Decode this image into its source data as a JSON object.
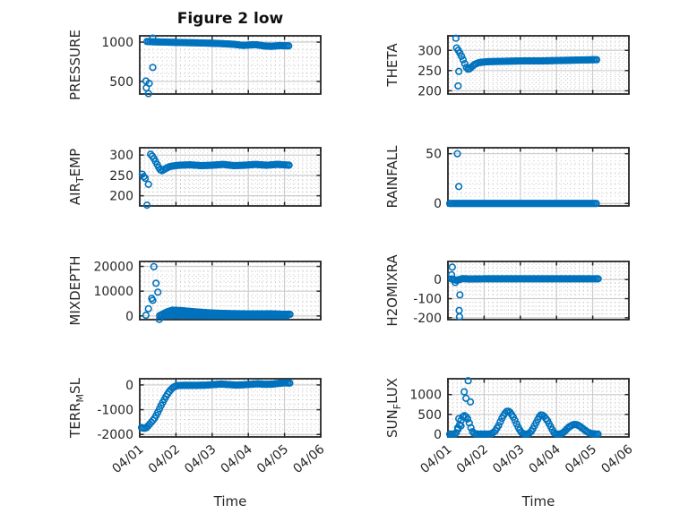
{
  "figure": {
    "title": "Figure 2 low",
    "xlabel": "Time",
    "background": "#ffffff",
    "marker_color": "#0072BD",
    "axis_color": "#262626",
    "grid_major_color": "#cccccc",
    "grid_minor_color": "#c3c3c3",
    "text_color": "#262626"
  },
  "chart_data": {
    "type": "scatter",
    "marker": "o",
    "title": "Figure 2 low",
    "xlabel": "Time",
    "xlim": [
      0,
      5
    ],
    "x_tick_labels": [
      "04/01",
      "04/02",
      "04/03",
      "04/04",
      "04/05",
      "04/06"
    ],
    "x_minor_per_day": 8,
    "legend": "none",
    "grid": "major+minor",
    "plots": [
      {
        "id": "pressure",
        "row": 0,
        "col": 0,
        "ylabel_segments": [
          {
            "text": "PRESSURE",
            "sub": false
          }
        ],
        "yticks": [
          500,
          1000
        ],
        "ylim": [
          340,
          1080
        ],
        "y_minor_step": 100,
        "series": [
          [
            0.2,
            1008
          ],
          [
            0.4,
            1003
          ],
          [
            0.7,
            1000
          ],
          [
            1,
            996
          ],
          [
            1.4,
            992
          ],
          [
            1.8,
            988
          ],
          [
            2.2,
            982
          ],
          [
            2.6,
            972
          ],
          [
            2.85,
            958
          ],
          [
            3,
            962
          ],
          [
            3.2,
            968
          ],
          [
            3.45,
            950
          ],
          [
            3.65,
            946
          ],
          [
            3.85,
            955
          ],
          [
            4.15,
            952
          ]
        ],
        "outliers": [
          [
            0.36,
            1050
          ],
          [
            0.36,
            678
          ],
          [
            0.17,
            505
          ],
          [
            0.26,
            475
          ],
          [
            0.18,
            418
          ],
          [
            0.24,
            345
          ]
        ]
      },
      {
        "id": "theta",
        "row": 0,
        "col": 1,
        "ylabel_segments": [
          {
            "text": "THETA",
            "sub": false
          }
        ],
        "yticks": [
          200,
          250,
          300
        ],
        "ylim": [
          192,
          336
        ],
        "y_minor_step": 10,
        "series": [
          [
            0.24,
            306
          ],
          [
            0.3,
            298
          ],
          [
            0.35,
            290
          ],
          [
            0.4,
            281
          ],
          [
            0.45,
            270
          ],
          [
            0.51,
            258
          ],
          [
            0.57,
            252
          ],
          [
            0.63,
            257
          ],
          [
            0.73,
            265
          ],
          [
            0.87,
            270
          ],
          [
            1.1,
            272
          ],
          [
            1.6,
            273
          ],
          [
            2.1,
            274
          ],
          [
            2.6,
            274
          ],
          [
            3.1,
            275
          ],
          [
            3.6,
            276
          ],
          [
            4.15,
            277
          ]
        ],
        "outliers": [
          [
            0.22,
            330
          ],
          [
            0.3,
            248
          ],
          [
            0.28,
            212
          ]
        ]
      },
      {
        "id": "air-temp",
        "row": 1,
        "col": 0,
        "ylabel_segments": [
          {
            "text": "AIR",
            "sub": false
          },
          {
            "text": "T",
            "sub": true
          },
          {
            "text": "EMP",
            "sub": false
          }
        ],
        "yticks": [
          200,
          250,
          300
        ],
        "ylim": [
          175,
          318
        ],
        "y_minor_step": 10,
        "series": [
          [
            0.3,
            302
          ],
          [
            0.36,
            296
          ],
          [
            0.42,
            287
          ],
          [
            0.48,
            277
          ],
          [
            0.54,
            267
          ],
          [
            0.6,
            261
          ],
          [
            0.68,
            265
          ],
          [
            0.78,
            270
          ],
          [
            0.9,
            273
          ],
          [
            1.1,
            275
          ],
          [
            1.4,
            276
          ],
          [
            1.7,
            274
          ],
          [
            2,
            275
          ],
          [
            2.3,
            277
          ],
          [
            2.6,
            274
          ],
          [
            2.9,
            275
          ],
          [
            3.2,
            277
          ],
          [
            3.5,
            275
          ],
          [
            3.8,
            277
          ],
          [
            4.15,
            275
          ]
        ],
        "outliers": [
          [
            0.07,
            253
          ],
          [
            0.11,
            247
          ],
          [
            0.15,
            243
          ],
          [
            0.24,
            228
          ],
          [
            0.2,
            177
          ]
        ]
      },
      {
        "id": "rainfall",
        "row": 1,
        "col": 1,
        "ylabel_segments": [
          {
            "text": "RAINFALL",
            "sub": false
          }
        ],
        "yticks": [
          0,
          50
        ],
        "ylim": [
          -2.5,
          56
        ],
        "y_minor_step": 10,
        "series": [
          [
            0.05,
            0
          ],
          [
            4.1,
            0
          ]
        ],
        "outliers": [
          [
            0.26,
            50
          ],
          [
            0.3,
            17
          ]
        ]
      },
      {
        "id": "mixdepth",
        "row": 2,
        "col": 0,
        "ylabel_segments": [
          {
            "text": "MIXDEPTH",
            "sub": false
          }
        ],
        "yticks": [
          0,
          10000,
          20000
        ],
        "ylim": [
          -1500,
          22000
        ],
        "y_minor_step": 2000,
        "series": [
          [
            0.55,
            150
          ],
          [
            0.65,
            800
          ],
          [
            0.75,
            1600
          ],
          [
            0.9,
            2300
          ],
          [
            1.15,
            2150
          ],
          [
            1.4,
            1800
          ],
          [
            1.7,
            1450
          ],
          [
            2,
            1150
          ],
          [
            2.4,
            950
          ],
          [
            2.8,
            850
          ],
          [
            3.2,
            800
          ],
          [
            3.6,
            850
          ],
          [
            3.9,
            700
          ],
          [
            4.15,
            650
          ]
        ],
        "series2": [
          [
            0.6,
            80
          ],
          [
            1,
            300
          ],
          [
            1.5,
            220
          ],
          [
            2,
            130
          ],
          [
            2.5,
            90
          ],
          [
            3,
            70
          ],
          [
            3.5,
            90
          ],
          [
            4.1,
            70
          ]
        ],
        "outliers": [
          [
            0.39,
            19900
          ],
          [
            0.45,
            13200
          ],
          [
            0.5,
            9600
          ],
          [
            0.33,
            7100
          ],
          [
            0.36,
            6300
          ],
          [
            0.24,
            2900
          ],
          [
            0.17,
            250
          ],
          [
            0.54,
            -1400
          ]
        ]
      },
      {
        "id": "h2omixra",
        "row": 2,
        "col": 1,
        "ylabel_segments": [
          {
            "text": "H2OMIXRA",
            "sub": false
          }
        ],
        "yticks": [
          -200,
          -100,
          0
        ],
        "ylim": [
          -210,
          95
        ],
        "y_minor_step": 20,
        "series": [
          [
            0.1,
            3
          ],
          [
            0.25,
            -4
          ],
          [
            0.4,
            5
          ],
          [
            0.6,
            3
          ],
          [
            1,
            4
          ],
          [
            1.5,
            4
          ],
          [
            2,
            4
          ],
          [
            2.5,
            4
          ],
          [
            3,
            4
          ],
          [
            3.5,
            4
          ],
          [
            4.15,
            4
          ]
        ],
        "outliers": [
          [
            0.12,
            65
          ],
          [
            0.1,
            25
          ],
          [
            0.2,
            -15
          ],
          [
            0.33,
            -80
          ],
          [
            0.31,
            -162
          ],
          [
            0.32,
            -195
          ]
        ]
      },
      {
        "id": "terr-msl",
        "row": 3,
        "col": 0,
        "ylabel_segments": [
          {
            "text": "TERR",
            "sub": false
          },
          {
            "text": "M",
            "sub": true
          },
          {
            "text": "SL",
            "sub": false
          }
        ],
        "yticks": [
          -2000,
          -1000,
          0
        ],
        "ylim": [
          -2100,
          250
        ],
        "y_minor_step": 200,
        "series": [
          [
            0.05,
            -1720
          ],
          [
            0.12,
            -1760
          ],
          [
            0.18,
            -1730
          ],
          [
            0.24,
            -1640
          ],
          [
            0.3,
            -1540
          ],
          [
            0.36,
            -1440
          ],
          [
            0.42,
            -1320
          ],
          [
            0.48,
            -1160
          ],
          [
            0.54,
            -980
          ],
          [
            0.6,
            -800
          ],
          [
            0.66,
            -640
          ],
          [
            0.72,
            -480
          ],
          [
            0.78,
            -340
          ],
          [
            0.84,
            -220
          ],
          [
            0.9,
            -130
          ],
          [
            0.97,
            -60
          ],
          [
            1.05,
            -25
          ],
          [
            1.2,
            -15
          ],
          [
            1.5,
            -18
          ],
          [
            1.8,
            -10
          ],
          [
            2.05,
            15
          ],
          [
            2.25,
            35
          ],
          [
            2.45,
            15
          ],
          [
            2.65,
            -5
          ],
          [
            2.85,
            5
          ],
          [
            3.05,
            25
          ],
          [
            3.25,
            45
          ],
          [
            3.45,
            25
          ],
          [
            3.65,
            30
          ],
          [
            3.85,
            65
          ],
          [
            4,
            85
          ],
          [
            4.15,
            75
          ]
        ],
        "outliers": []
      },
      {
        "id": "sun-flux",
        "row": 3,
        "col": 1,
        "ylabel_segments": [
          {
            "text": "SUN",
            "sub": false
          },
          {
            "text": "F",
            "sub": true
          },
          {
            "text": "LUX",
            "sub": false
          }
        ],
        "yticks": [
          0,
          500,
          1000
        ],
        "ylim": [
          -70,
          1400
        ],
        "y_minor_step": 100,
        "series": [
          [
            0.05,
            0
          ],
          [
            0.2,
            2
          ],
          [
            0.25,
            60
          ],
          [
            0.3,
            180
          ],
          [
            0.35,
            320
          ],
          [
            0.4,
            430
          ],
          [
            0.45,
            470
          ],
          [
            0.5,
            440
          ],
          [
            0.55,
            380
          ],
          [
            0.6,
            260
          ],
          [
            0.65,
            120
          ],
          [
            0.7,
            25
          ],
          [
            0.78,
            0
          ],
          [
            1.18,
            0
          ],
          [
            1.3,
            70
          ],
          [
            1.4,
            220
          ],
          [
            1.5,
            420
          ],
          [
            1.6,
            560
          ],
          [
            1.65,
            590
          ],
          [
            1.72,
            550
          ],
          [
            1.82,
            410
          ],
          [
            1.92,
            210
          ],
          [
            2.02,
            50
          ],
          [
            2.1,
            0
          ],
          [
            2.22,
            0
          ],
          [
            2.32,
            90
          ],
          [
            2.42,
            260
          ],
          [
            2.52,
            440
          ],
          [
            2.58,
            495
          ],
          [
            2.65,
            460
          ],
          [
            2.75,
            340
          ],
          [
            2.85,
            170
          ],
          [
            2.93,
            35
          ],
          [
            3,
            0
          ],
          [
            3.12,
            0
          ],
          [
            3.22,
            65
          ],
          [
            3.32,
            165
          ],
          [
            3.45,
            240
          ],
          [
            3.55,
            245
          ],
          [
            3.65,
            195
          ],
          [
            3.75,
            125
          ],
          [
            3.85,
            55
          ],
          [
            3.95,
            18
          ],
          [
            4.05,
            4
          ],
          [
            4.15,
            0
          ]
        ],
        "outliers": [
          [
            0.56,
            1350
          ],
          [
            0.45,
            1070
          ],
          [
            0.5,
            905
          ],
          [
            0.62,
            815
          ],
          [
            0.3,
            390
          ],
          [
            0.27,
            160
          ],
          [
            0.36,
            210
          ]
        ]
      }
    ]
  }
}
